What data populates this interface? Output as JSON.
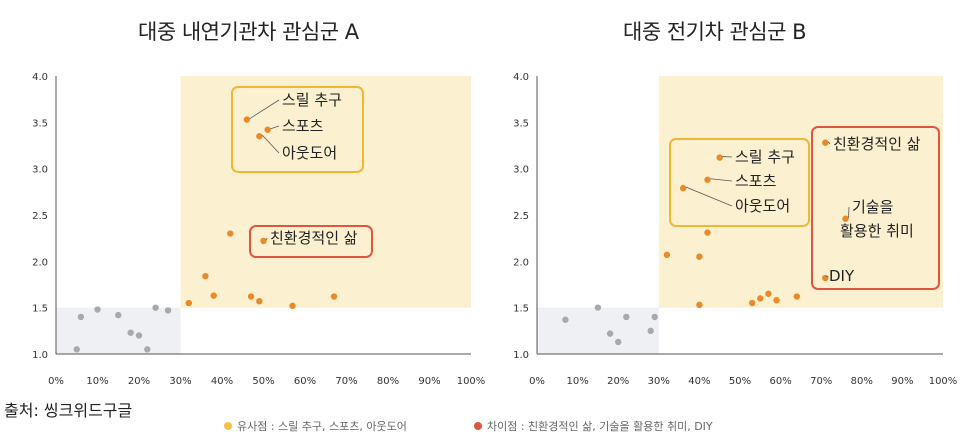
{
  "chart_data": [
    {
      "type": "scatter",
      "title": "대중 내연기관차 관심군 A",
      "xlim": [
        0,
        100
      ],
      "ylim": [
        1.0,
        4.0
      ],
      "x_ticks": [
        "0%",
        "10%",
        "20%",
        "30%",
        "40%",
        "50%",
        "60%",
        "70%",
        "80%",
        "90%",
        "100%"
      ],
      "y_ticks": [
        "1.0",
        "1.5",
        "2.0",
        "2.5",
        "3.0",
        "3.5",
        "4.0"
      ],
      "grey_points": [
        [
          5,
          1.05
        ],
        [
          6,
          1.4
        ],
        [
          10,
          1.48
        ],
        [
          15,
          1.42
        ],
        [
          18,
          1.23
        ],
        [
          20,
          1.2
        ],
        [
          22,
          1.05
        ],
        [
          24,
          1.5
        ],
        [
          27,
          1.47
        ]
      ],
      "orange_points": [
        [
          32,
          1.55
        ],
        [
          36,
          1.84
        ],
        [
          38,
          1.63
        ],
        [
          42,
          2.3
        ],
        [
          47,
          1.62
        ],
        [
          49,
          1.57
        ],
        [
          57,
          1.52
        ],
        [
          67,
          1.62
        ]
      ],
      "labeled_points": [
        {
          "x": 46,
          "y": 3.53,
          "text": "스릴 추구"
        },
        {
          "x": 51,
          "y": 3.42,
          "text": "스포츠"
        },
        {
          "x": 49,
          "y": 3.35,
          "text": "아웃도어"
        },
        {
          "x": 50,
          "y": 2.22,
          "text": "친환경적인 삶"
        }
      ]
    },
    {
      "type": "scatter",
      "title": "대중 전기차 관심군 B",
      "xlim": [
        0,
        100
      ],
      "ylim": [
        1.0,
        4.0
      ],
      "x_ticks": [
        "0%",
        "10%",
        "20%",
        "30%",
        "40%",
        "50%",
        "60%",
        "70%",
        "80%",
        "90%",
        "100%"
      ],
      "y_ticks": [
        "1.0",
        "1.5",
        "2.0",
        "2.5",
        "3.0",
        "3.5",
        "4.0"
      ],
      "grey_points": [
        [
          7,
          1.37
        ],
        [
          15,
          1.5
        ],
        [
          18,
          1.22
        ],
        [
          20,
          1.13
        ],
        [
          22,
          1.4
        ],
        [
          28,
          1.25
        ],
        [
          29,
          1.4
        ]
      ],
      "orange_points": [
        [
          32,
          2.07
        ],
        [
          40,
          2.05
        ],
        [
          40,
          1.53
        ],
        [
          42,
          2.31
        ],
        [
          53,
          1.55
        ],
        [
          55,
          1.6
        ],
        [
          57,
          1.65
        ],
        [
          59,
          1.58
        ],
        [
          64,
          1.62
        ]
      ],
      "labeled_points": [
        {
          "x": 45,
          "y": 3.12,
          "text": "스릴 추구"
        },
        {
          "x": 42,
          "y": 2.88,
          "text": "스포츠"
        },
        {
          "x": 36,
          "y": 2.79,
          "text": "아웃도어"
        },
        {
          "x": 71,
          "y": 3.28,
          "text": "친환경적인 삶"
        },
        {
          "x": 76,
          "y": 2.46,
          "text": "기술을 활용한 취미"
        },
        {
          "x": 71,
          "y": 1.82,
          "text": "DIY"
        }
      ]
    }
  ],
  "source": "출처: 씽크위드구글",
  "legend": [
    {
      "text": "유사점 : 스릴 추구, 스포츠, 아웃도어",
      "color": "#f5c242"
    },
    {
      "text": "차이점 : 친환경적인 삶, 기술을 활용한 취미, DIY",
      "color": "#e0553f"
    }
  ],
  "colors": {
    "highlight_fill": "#fbf1d0",
    "grey_fill": "#eef0f4",
    "orange_point": "#e8892a",
    "grey_point": "#a7a9ad",
    "yellow_box": "#f2b630",
    "red_box": "#e0553f",
    "axis": "#555555"
  }
}
